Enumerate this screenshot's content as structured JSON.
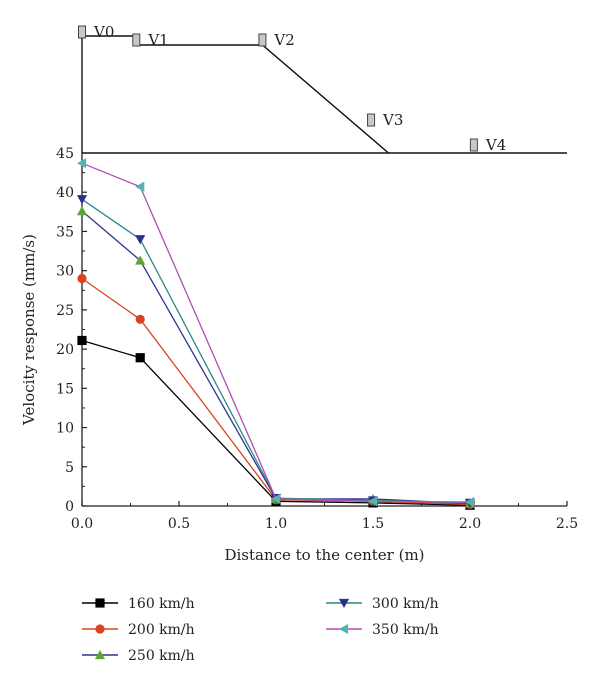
{
  "chart_data": {
    "type": "line",
    "xlabel": "Distance to the center (m)",
    "ylabel": "Velocity response (mm/s)",
    "xlim": [
      0,
      2.5
    ],
    "ylim": [
      0,
      45
    ],
    "xticks": [
      "0.0",
      "0.5",
      "1.0",
      "1.5",
      "2.0",
      "2.5"
    ],
    "yticks": [
      "0",
      "5",
      "10",
      "15",
      "20",
      "25",
      "30",
      "35",
      "40",
      "45"
    ],
    "grid": false,
    "legend": "bottom",
    "x": [
      0,
      0.3,
      1.0,
      1.5,
      2.0
    ],
    "series": [
      {
        "name": "160 km/h",
        "color": "#000000",
        "marker": "square",
        "values": [
          21.1,
          18.9,
          0.6,
          0.4,
          0.1
        ]
      },
      {
        "name": "200 km/h",
        "color": "#d9441f",
        "marker": "circle",
        "values": [
          29.0,
          23.8,
          0.8,
          0.6,
          0.2
        ]
      },
      {
        "name": "250 km/h",
        "color": "#5aa632",
        "marker": "triangle-up",
        "values": [
          37.6,
          31.3,
          0.9,
          0.9,
          0.3
        ]
      },
      {
        "name": "300 km/h",
        "color": "#2c2f8f",
        "marker": "triangle-down",
        "values": [
          39.1,
          34.0,
          1.0,
          0.7,
          0.4
        ]
      },
      {
        "name": "350 km/h",
        "color": "#52b3b3",
        "marker": "triangle-left",
        "values": [
          43.7,
          40.7,
          0.9,
          0.6,
          0.5
        ]
      }
    ],
    "series_line_colors": [
      "#000000",
      "#d9441f",
      "#2f3592",
      "#2a8a86",
      "#b04fb4"
    ],
    "schematic": {
      "sensors": [
        {
          "label": "V0",
          "x": 0.0,
          "level": "top"
        },
        {
          "label": "V1",
          "x": 0.28,
          "level": "top"
        },
        {
          "label": "V2",
          "x": 0.93,
          "level": "top"
        },
        {
          "label": "V3",
          "x": 1.49,
          "level": "slope"
        },
        {
          "label": "V4",
          "x": 2.02,
          "level": "ground"
        }
      ],
      "profile_x": [
        0,
        0.28,
        0.93,
        1.58,
        2.5
      ]
    }
  }
}
